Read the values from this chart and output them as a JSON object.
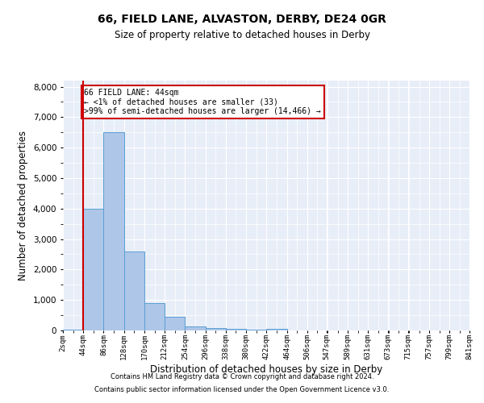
{
  "title1": "66, FIELD LANE, ALVASTON, DERBY, DE24 0GR",
  "title2": "Size of property relative to detached houses in Derby",
  "xlabel": "Distribution of detached houses by size in Derby",
  "ylabel": "Number of detached properties",
  "footer1": "Contains HM Land Registry data © Crown copyright and database right 2024.",
  "footer2": "Contains public sector information licensed under the Open Government Licence v3.0.",
  "annotation_title": "66 FIELD LANE: 44sqm",
  "annotation_line2": "← <1% of detached houses are smaller (33)",
  "annotation_line3": ">99% of semi-detached houses are larger (14,466) →",
  "property_size": 44,
  "bin_edges": [
    2,
    44,
    86,
    128,
    170,
    212,
    254,
    296,
    338,
    380,
    422,
    464,
    506,
    547,
    589,
    631,
    673,
    715,
    757,
    799,
    841
  ],
  "bar_heights": [
    33,
    4000,
    6500,
    2600,
    900,
    450,
    120,
    75,
    50,
    30,
    50,
    0,
    0,
    0,
    0,
    0,
    0,
    0,
    0,
    0
  ],
  "bar_color": "#aec6e8",
  "bar_edge_color": "#5a9fd4",
  "vline_color": "#cc0000",
  "annotation_box_color": "#cc0000",
  "background_color": "#e8eef8",
  "grid_color": "#ffffff",
  "ylim": [
    0,
    8200
  ],
  "yticks": [
    0,
    1000,
    2000,
    3000,
    4000,
    5000,
    6000,
    7000,
    8000
  ]
}
